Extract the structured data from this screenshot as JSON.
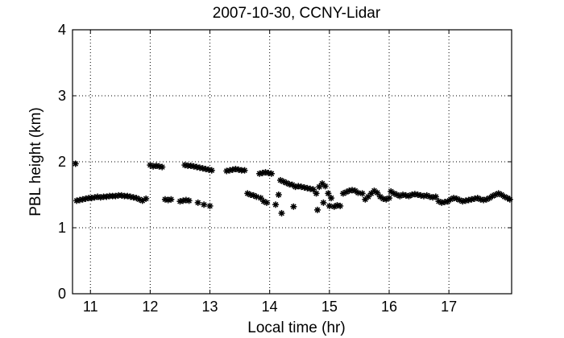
{
  "chart_data": {
    "type": "scatter",
    "title": "2007-10-30, CCNY-Lidar",
    "xlabel": "Local time (hr)",
    "ylabel": "PBL height (km)",
    "xlim": [
      10.7,
      18.05
    ],
    "ylim": [
      0,
      4
    ],
    "xticks": [
      11,
      12,
      13,
      14,
      15,
      16,
      17
    ],
    "yticks": [
      0,
      1,
      2,
      3,
      4
    ],
    "grid": true,
    "marker": "asterisk",
    "color": "#000000",
    "series": [
      {
        "points": [
          [
            10.75,
            1.97
          ],
          [
            10.77,
            1.41
          ],
          [
            10.82,
            1.42
          ],
          [
            10.87,
            1.43
          ],
          [
            10.92,
            1.44
          ],
          [
            10.97,
            1.45
          ],
          [
            11.02,
            1.45
          ],
          [
            11.07,
            1.46
          ],
          [
            11.12,
            1.47
          ],
          [
            11.17,
            1.46
          ],
          [
            11.22,
            1.47
          ],
          [
            11.27,
            1.47
          ],
          [
            11.32,
            1.48
          ],
          [
            11.37,
            1.48
          ],
          [
            11.42,
            1.48
          ],
          [
            11.47,
            1.49
          ],
          [
            11.52,
            1.49
          ],
          [
            11.57,
            1.48
          ],
          [
            11.62,
            1.48
          ],
          [
            11.67,
            1.47
          ],
          [
            11.72,
            1.46
          ],
          [
            11.77,
            1.45
          ],
          [
            11.82,
            1.43
          ],
          [
            11.87,
            1.41
          ],
          [
            11.93,
            1.44
          ],
          [
            12.0,
            1.95
          ],
          [
            12.05,
            1.93
          ],
          [
            12.1,
            1.94
          ],
          [
            12.15,
            1.93
          ],
          [
            12.2,
            1.92
          ],
          [
            12.25,
            1.43
          ],
          [
            12.3,
            1.42
          ],
          [
            12.35,
            1.43
          ],
          [
            12.5,
            1.4
          ],
          [
            12.55,
            1.41
          ],
          [
            12.6,
            1.42
          ],
          [
            12.65,
            1.41
          ],
          [
            12.58,
            1.95
          ],
          [
            12.63,
            1.94
          ],
          [
            12.68,
            1.94
          ],
          [
            12.73,
            1.93
          ],
          [
            12.78,
            1.92
          ],
          [
            12.83,
            1.91
          ],
          [
            12.88,
            1.9
          ],
          [
            12.93,
            1.89
          ],
          [
            12.98,
            1.88
          ],
          [
            13.03,
            1.87
          ],
          [
            12.8,
            1.38
          ],
          [
            12.9,
            1.35
          ],
          [
            13.0,
            1.33
          ],
          [
            13.28,
            1.86
          ],
          [
            13.33,
            1.87
          ],
          [
            13.38,
            1.88
          ],
          [
            13.43,
            1.89
          ],
          [
            13.48,
            1.88
          ],
          [
            13.53,
            1.87
          ],
          [
            13.58,
            1.87
          ],
          [
            13.63,
            1.52
          ],
          [
            13.68,
            1.5
          ],
          [
            13.73,
            1.49
          ],
          [
            13.78,
            1.47
          ],
          [
            13.83,
            1.82
          ],
          [
            13.88,
            1.83
          ],
          [
            13.93,
            1.84
          ],
          [
            13.98,
            1.83
          ],
          [
            14.03,
            1.82
          ],
          [
            13.85,
            1.45
          ],
          [
            13.9,
            1.4
          ],
          [
            13.95,
            1.38
          ],
          [
            14.1,
            1.35
          ],
          [
            14.15,
            1.5
          ],
          [
            14.18,
            1.72
          ],
          [
            14.23,
            1.7
          ],
          [
            14.28,
            1.68
          ],
          [
            14.2,
            1.22
          ],
          [
            14.33,
            1.66
          ],
          [
            14.38,
            1.65
          ],
          [
            14.4,
            1.32
          ],
          [
            14.43,
            1.62
          ],
          [
            14.48,
            1.63
          ],
          [
            14.53,
            1.62
          ],
          [
            14.58,
            1.61
          ],
          [
            14.63,
            1.6
          ],
          [
            14.68,
            1.59
          ],
          [
            14.73,
            1.58
          ],
          [
            14.78,
            1.52
          ],
          [
            14.8,
            1.27
          ],
          [
            14.83,
            1.62
          ],
          [
            14.88,
            1.67
          ],
          [
            14.9,
            1.38
          ],
          [
            14.93,
            1.63
          ],
          [
            14.98,
            1.52
          ],
          [
            15.0,
            1.33
          ],
          [
            15.03,
            1.45
          ],
          [
            15.08,
            1.32
          ],
          [
            15.13,
            1.34
          ],
          [
            15.18,
            1.33
          ],
          [
            15.23,
            1.52
          ],
          [
            15.28,
            1.54
          ],
          [
            15.33,
            1.56
          ],
          [
            15.38,
            1.57
          ],
          [
            15.43,
            1.56
          ],
          [
            15.48,
            1.53
          ],
          [
            15.55,
            1.52
          ],
          [
            15.6,
            1.43
          ],
          [
            15.65,
            1.47
          ],
          [
            15.7,
            1.52
          ],
          [
            15.75,
            1.56
          ],
          [
            15.8,
            1.53
          ],
          [
            15.85,
            1.47
          ],
          [
            15.9,
            1.44
          ],
          [
            15.95,
            1.43
          ],
          [
            16.0,
            1.45
          ],
          [
            16.03,
            1.55
          ],
          [
            16.08,
            1.52
          ],
          [
            16.13,
            1.5
          ],
          [
            16.18,
            1.48
          ],
          [
            16.23,
            1.5
          ],
          [
            16.28,
            1.49
          ],
          [
            16.33,
            1.48
          ],
          [
            16.38,
            1.5
          ],
          [
            16.43,
            1.51
          ],
          [
            16.48,
            1.5
          ],
          [
            16.53,
            1.49
          ],
          [
            16.58,
            1.48
          ],
          [
            16.63,
            1.49
          ],
          [
            16.68,
            1.47
          ],
          [
            16.73,
            1.46
          ],
          [
            16.78,
            1.47
          ],
          [
            16.83,
            1.4
          ],
          [
            16.88,
            1.38
          ],
          [
            16.93,
            1.39
          ],
          [
            16.98,
            1.4
          ],
          [
            17.03,
            1.43
          ],
          [
            17.08,
            1.45
          ],
          [
            17.13,
            1.44
          ],
          [
            17.18,
            1.42
          ],
          [
            17.23,
            1.4
          ],
          [
            17.28,
            1.41
          ],
          [
            17.33,
            1.42
          ],
          [
            17.38,
            1.43
          ],
          [
            17.43,
            1.44
          ],
          [
            17.48,
            1.45
          ],
          [
            17.53,
            1.43
          ],
          [
            17.58,
            1.42
          ],
          [
            17.63,
            1.43
          ],
          [
            17.68,
            1.45
          ],
          [
            17.73,
            1.48
          ],
          [
            17.78,
            1.5
          ],
          [
            17.83,
            1.52
          ],
          [
            17.88,
            1.5
          ],
          [
            17.93,
            1.47
          ],
          [
            17.98,
            1.45
          ],
          [
            18.02,
            1.43
          ]
        ]
      }
    ]
  }
}
